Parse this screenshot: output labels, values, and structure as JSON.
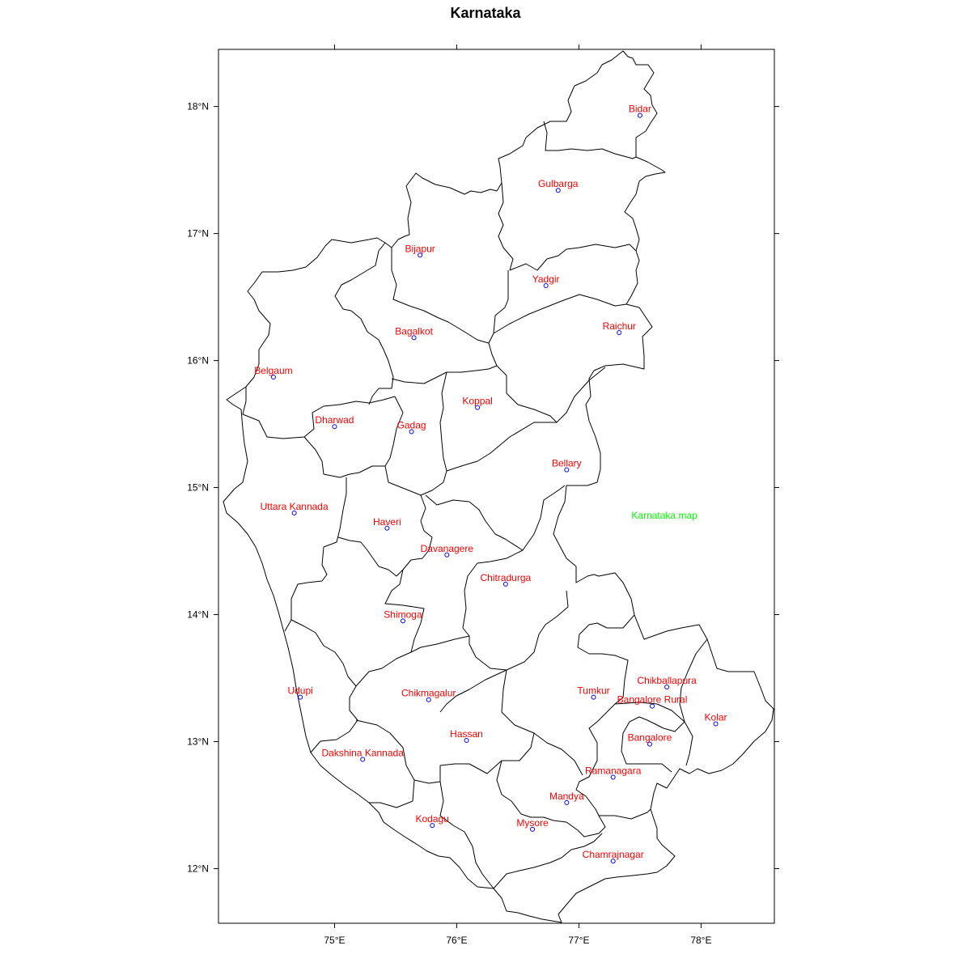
{
  "title": "Karnataka",
  "annotation": {
    "text": "Karnataka map",
    "lon": 77.7,
    "lat": 14.78,
    "color": "#00ff00"
  },
  "label_color": "#ff0000",
  "marker_color": "#0000ff",
  "axes": {
    "x_ticks": [
      {
        "value": 75,
        "label": "75°E"
      },
      {
        "value": 76,
        "label": "76°E"
      },
      {
        "value": 77,
        "label": "77°E"
      },
      {
        "value": 78,
        "label": "78°E"
      }
    ],
    "y_ticks": [
      {
        "value": 12,
        "label": "12°N"
      },
      {
        "value": 13,
        "label": "13°N"
      },
      {
        "value": 14,
        "label": "14°N"
      },
      {
        "value": 15,
        "label": "15°N"
      },
      {
        "value": 16,
        "label": "16°N"
      },
      {
        "value": 17,
        "label": "17°N"
      },
      {
        "value": 18,
        "label": "18°N"
      }
    ],
    "lon_range": [
      74.05,
      78.6
    ],
    "lat_range": [
      11.57,
      18.45
    ]
  },
  "districts": [
    {
      "name": "Bidar",
      "lon": 77.5,
      "lat": 17.93
    },
    {
      "name": "Gulbarga",
      "lon": 76.83,
      "lat": 17.34
    },
    {
      "name": "Bijapur",
      "lon": 75.7,
      "lat": 16.83
    },
    {
      "name": "Yadgir",
      "lon": 76.73,
      "lat": 16.59
    },
    {
      "name": "Bagalkot",
      "lon": 75.65,
      "lat": 16.18
    },
    {
      "name": "Raichur",
      "lon": 77.33,
      "lat": 16.22
    },
    {
      "name": "Belgaum",
      "lon": 74.5,
      "lat": 15.87
    },
    {
      "name": "Koppal",
      "lon": 76.17,
      "lat": 15.63
    },
    {
      "name": "Dharwad",
      "lon": 75.0,
      "lat": 15.48
    },
    {
      "name": "Gadag",
      "lon": 75.63,
      "lat": 15.44
    },
    {
      "name": "Bellary",
      "lon": 76.9,
      "lat": 15.14
    },
    {
      "name": "Uttara Kannada",
      "lon": 74.67,
      "lat": 14.8
    },
    {
      "name": "Haveri",
      "lon": 75.43,
      "lat": 14.68
    },
    {
      "name": "Davanagere",
      "lon": 75.92,
      "lat": 14.47
    },
    {
      "name": "Chitradurga",
      "lon": 76.4,
      "lat": 14.24
    },
    {
      "name": "Shimoga",
      "lon": 75.56,
      "lat": 13.95
    },
    {
      "name": "Chikballapura",
      "lon": 77.72,
      "lat": 13.43
    },
    {
      "name": "Tumkur",
      "lon": 77.12,
      "lat": 13.35
    },
    {
      "name": "Chikmagalur",
      "lon": 75.77,
      "lat": 13.33
    },
    {
      "name": "Udupi",
      "lon": 74.72,
      "lat": 13.35
    },
    {
      "name": "Bangalore Rural",
      "lon": 77.6,
      "lat": 13.28
    },
    {
      "name": "Kolar",
      "lon": 78.12,
      "lat": 13.14
    },
    {
      "name": "Hassan",
      "lon": 76.08,
      "lat": 13.01
    },
    {
      "name": "Bangalore",
      "lon": 77.58,
      "lat": 12.98
    },
    {
      "name": "Dakshina Kannada",
      "lon": 75.23,
      "lat": 12.86
    },
    {
      "name": "Ramanagara",
      "lon": 77.28,
      "lat": 12.72
    },
    {
      "name": "Mandya",
      "lon": 76.9,
      "lat": 12.52
    },
    {
      "name": "Kodagu",
      "lon": 75.8,
      "lat": 12.34
    },
    {
      "name": "Mysore",
      "lon": 76.62,
      "lat": 12.31
    },
    {
      "name": "Chamrajnagar",
      "lon": 77.28,
      "lat": 12.06
    }
  ]
}
